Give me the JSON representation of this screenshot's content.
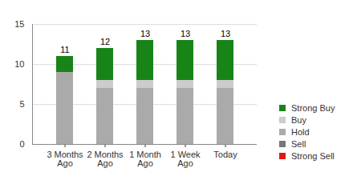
{
  "chart_data": {
    "type": "bar",
    "stacked": true,
    "grid": true,
    "legend": "right",
    "categories": [
      "3 Months Ago",
      "2 Months Ago",
      "1 Month Ago",
      "1 Week Ago",
      "Today"
    ],
    "series": [
      {
        "name": "Strong Buy",
        "color": "#188418",
        "values": [
          2,
          4,
          5,
          5,
          5
        ]
      },
      {
        "name": "Buy",
        "color": "#cccccc",
        "values": [
          0,
          1,
          1,
          1,
          1
        ]
      },
      {
        "name": "Hold",
        "color": "#aaaaaa",
        "values": [
          9,
          7,
          7,
          7,
          7
        ]
      },
      {
        "name": "Sell",
        "color": "#777777",
        "values": [
          0,
          0,
          0,
          0,
          0
        ]
      },
      {
        "name": "Strong Sell",
        "color": "#e01818",
        "values": [
          0,
          0,
          0,
          0,
          0
        ]
      }
    ],
    "totals": [
      11,
      12,
      13,
      13,
      13
    ],
    "ylim": [
      0,
      15
    ],
    "yticks": [
      0,
      5,
      10,
      15
    ]
  }
}
